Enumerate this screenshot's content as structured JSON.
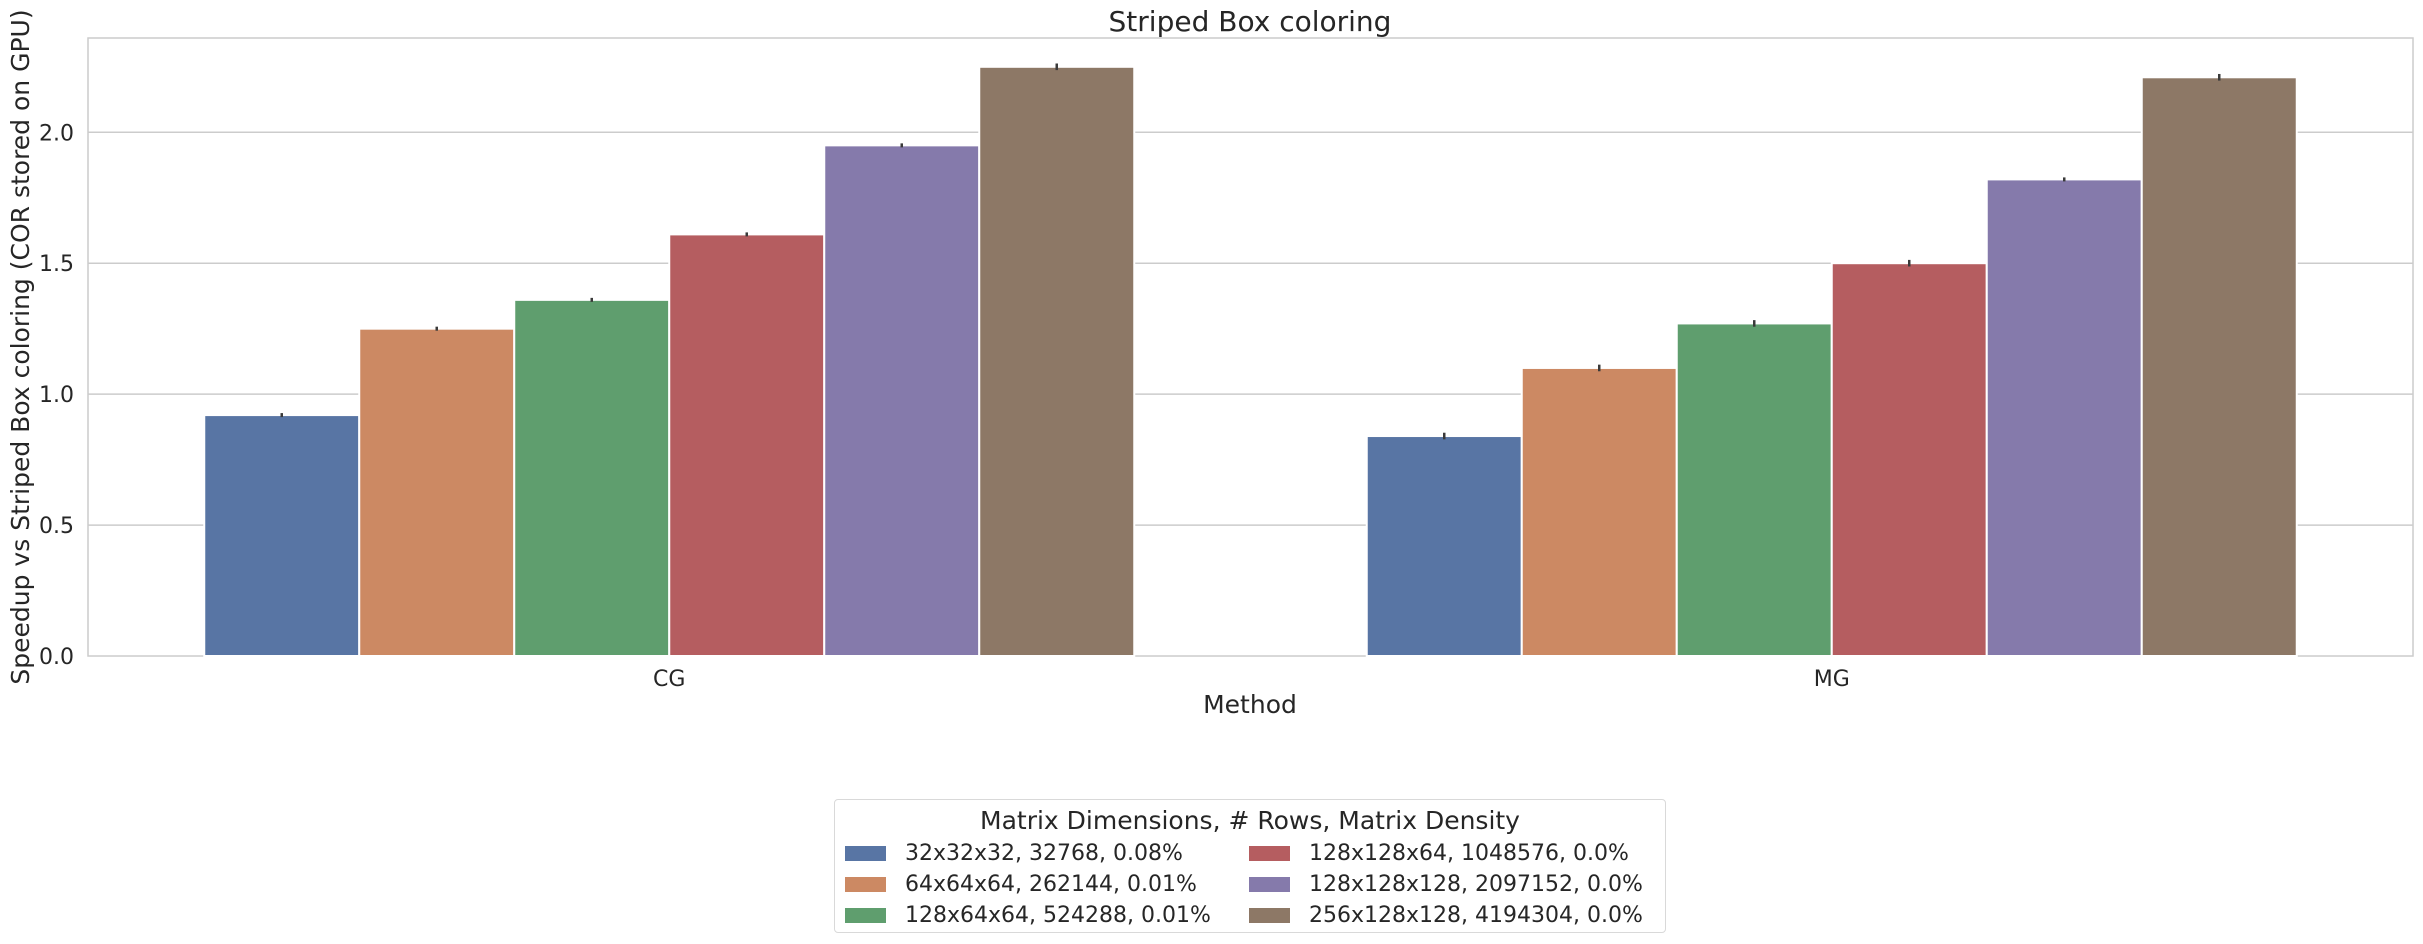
{
  "chart_data": {
    "type": "bar",
    "title": "Striped Box coloring",
    "xlabel": "Method",
    "ylabel": "Speedup vs Striped Box coloring (COR stored on GPU)",
    "categories": [
      "CG",
      "MG"
    ],
    "ylim": [
      0,
      2.36
    ],
    "yticks": [
      "0.0",
      "0.5",
      "1.0",
      "1.5",
      "2.0"
    ],
    "grid": true,
    "legend_title": "Matrix Dimensions, # Rows, Matrix Density",
    "legend_position": "bottom-center",
    "series": [
      {
        "name": "32x32x32, 32768, 0.08%",
        "color": "#5875a4",
        "values": [
          0.92,
          0.84
        ],
        "err": [
          0.0,
          0.005
        ]
      },
      {
        "name": "64x64x64, 262144, 0.01%",
        "color": "#cc8963",
        "values": [
          1.25,
          1.1
        ],
        "err": [
          0.0,
          0.005
        ]
      },
      {
        "name": "128x64x64, 524288, 0.01%",
        "color": "#5f9e6e",
        "values": [
          1.36,
          1.27
        ],
        "err": [
          0.0,
          0.005
        ]
      },
      {
        "name": "128x128x64, 1048576, 0.0%",
        "color": "#b55d60",
        "values": [
          1.61,
          1.5
        ],
        "err": [
          0.0,
          0.005
        ]
      },
      {
        "name": "128x128x128, 2097152, 0.0%",
        "color": "#857aab",
        "values": [
          1.95,
          1.82
        ],
        "err": [
          0.0,
          0.0
        ]
      },
      {
        "name": "256x128x128, 4194304, 0.0%",
        "color": "#8d7866",
        "values": [
          2.25,
          2.21
        ],
        "err": [
          0.005,
          0.005
        ]
      }
    ]
  }
}
